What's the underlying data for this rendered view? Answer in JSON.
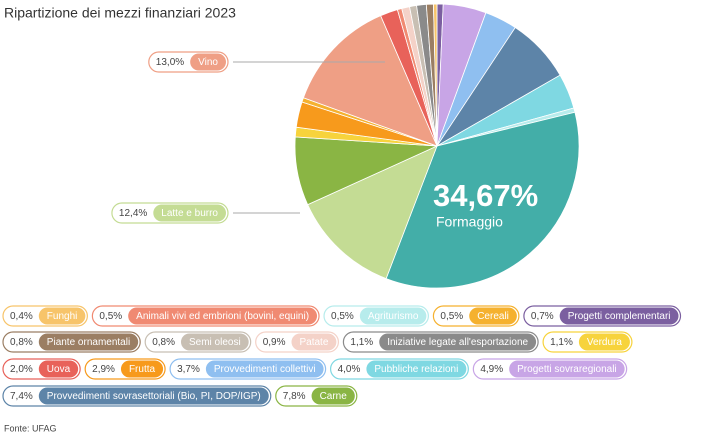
{
  "chart_data": {
    "type": "pie",
    "title": "Ripartizione dei mezzi finanziari 2023",
    "source": "Fonte: UFAG",
    "categories": [
      "Progetti complementari",
      "Progetti sovraregionali",
      "Provvedimenti collettivi",
      "Provvedimenti sovrasettoriali (Bio, PI, DOP/IGP)",
      "Pubbliche relazioni",
      "Agriturismo",
      "Formaggio",
      "Latte e burro",
      "Carne",
      "Verdura",
      "Frutta",
      "Cereali",
      "Vino",
      "Uova",
      "Animali vivi ed embrioni (bovini, equini)",
      "Patate",
      "Semi oleosi",
      "Iniziative legate all'esportazione",
      "Piante ornamentali",
      "Funghi"
    ],
    "values": [
      0.7,
      4.9,
      3.7,
      7.4,
      4.0,
      0.5,
      34.67,
      12.4,
      7.8,
      1.1,
      2.9,
      0.5,
      13.0,
      2.0,
      0.5,
      0.9,
      0.8,
      1.1,
      0.8,
      0.4
    ],
    "value_labels": [
      "0,7%",
      "4,9%",
      "3,7%",
      "7,4%",
      "4,0%",
      "0,5%",
      "34,67%",
      "12,4%",
      "7,8%",
      "1,1%",
      "2,9%",
      "0,5%",
      "13,0%",
      "2,0%",
      "0,5%",
      "0,9%",
      "0,8%",
      "1,1%",
      "0,8%",
      "0,4%"
    ],
    "colors": [
      "#7b5fa0",
      "#c8a5e6",
      "#8fbff0",
      "#5d84a8",
      "#7fd8e2",
      "#b7ecec",
      "#43aea8",
      "#c4dc94",
      "#8ab544",
      "#f7d33c",
      "#f79a1c",
      "#f5b12f",
      "#ef9f85",
      "#e8625a",
      "#f08a72",
      "#f4d2c8",
      "#c8bfb3",
      "#8a8a8a",
      "#9b7e63",
      "#f7c46a"
    ]
  }
}
